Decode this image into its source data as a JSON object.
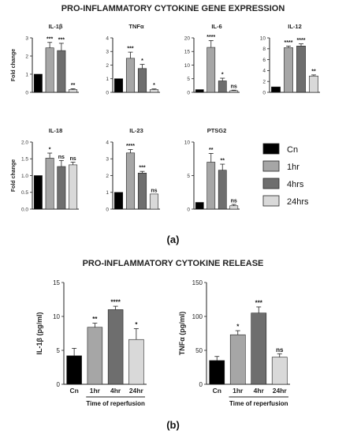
{
  "titles": {
    "gene_expression": "PRO-INFLAMMATORY CYTOKINE GENE EXPRESSION",
    "cytokine_release": "PRO-INFLAMMATORY CYTOKINE RELEASE"
  },
  "panel_labels": {
    "a": "(a)",
    "b": "(b)"
  },
  "legend": {
    "entries": [
      {
        "label": "Cn",
        "color": "#000000"
      },
      {
        "label": "1hr",
        "color": "#a6a6a6"
      },
      {
        "label": "4hrs",
        "color": "#6e6e6e"
      },
      {
        "label": "24hrs",
        "color": "#d9d9d9"
      }
    ]
  },
  "chart_data": [
    {
      "type": "bar",
      "title": "IL-1β",
      "ylabel": "Fold change",
      "categories": [
        "Cn",
        "1hr",
        "4hrs",
        "24hrs"
      ],
      "values": [
        1,
        2.45,
        2.3,
        0.15
      ],
      "errors": [
        0,
        0.3,
        0.4,
        0.05
      ],
      "significance": [
        "",
        "***",
        "***",
        "**"
      ],
      "yticks": [
        "0",
        "1",
        "2",
        "3"
      ],
      "ylim": [
        0,
        3
      ]
    },
    {
      "type": "bar",
      "title": "TNFα",
      "ylabel": "",
      "categories": [
        "Cn",
        "1hr",
        "4hrs",
        "24hrs"
      ],
      "values": [
        1,
        2.5,
        1.75,
        0.2
      ],
      "errors": [
        0,
        0.45,
        0.3,
        0.05
      ],
      "significance": [
        "",
        "***",
        "*",
        "*"
      ],
      "yticks": [
        "0",
        "1",
        "2",
        "3",
        "4"
      ],
      "ylim": [
        0,
        4
      ]
    },
    {
      "type": "bar",
      "title": "IL-6",
      "ylabel": "",
      "categories": [
        "Cn",
        "1hr",
        "4hrs",
        "24hrs"
      ],
      "values": [
        1,
        16.5,
        4.2,
        0.6
      ],
      "errors": [
        0,
        2.5,
        1.0,
        0.2
      ],
      "significance": [
        "",
        "****",
        "*",
        "ns"
      ],
      "yticks": [
        "0",
        "5",
        "10",
        "15",
        "20"
      ],
      "ylim": [
        0,
        20
      ]
    },
    {
      "type": "bar",
      "title": "IL-12",
      "ylabel": "",
      "categories": [
        "Cn",
        "1hr",
        "4hrs",
        "24hrs"
      ],
      "values": [
        1,
        8.2,
        8.5,
        3.0
      ],
      "errors": [
        0,
        0.3,
        0.4,
        0.2
      ],
      "significance": [
        "",
        "****",
        "****",
        "**"
      ],
      "yticks": [
        "0",
        "2",
        "4",
        "6",
        "8",
        "10"
      ],
      "ylim": [
        0,
        10
      ]
    },
    {
      "type": "bar",
      "title": "IL-18",
      "ylabel": "Fold change",
      "categories": [
        "Cn",
        "1hr",
        "4hrs",
        "24hrs"
      ],
      "values": [
        1,
        1.52,
        1.27,
        1.32
      ],
      "errors": [
        0,
        0.15,
        0.18,
        0.08
      ],
      "significance": [
        "",
        "*",
        "ns",
        "ns"
      ],
      "yticks": [
        "0.0",
        "0.5",
        "1.0",
        "1.5",
        "2.0"
      ],
      "ylim": [
        0,
        2
      ]
    },
    {
      "type": "bar",
      "title": "IL-23",
      "ylabel": "",
      "categories": [
        "Cn",
        "1hr",
        "4hrs",
        "24hrs"
      ],
      "values": [
        1,
        3.35,
        2.15,
        0.9
      ],
      "errors": [
        0,
        0.2,
        0.1,
        0
      ],
      "significance": [
        "",
        "****",
        "***",
        "ns"
      ],
      "yticks": [
        "0",
        "1",
        "2",
        "3",
        "4"
      ],
      "ylim": [
        0,
        4
      ]
    },
    {
      "type": "bar",
      "title": "PTSG2",
      "ylabel": "",
      "categories": [
        "Cn",
        "1hr",
        "4hrs",
        "24hrs"
      ],
      "values": [
        1,
        7,
        5.8,
        0.5
      ],
      "errors": [
        0,
        1.3,
        0.9,
        0.2
      ],
      "significance": [
        "",
        "**",
        "**",
        "ns"
      ],
      "yticks": [
        "0",
        "5",
        "10"
      ],
      "ylim": [
        0,
        10
      ]
    },
    {
      "type": "bar",
      "title": "",
      "ylabel": "IL-1β (pg/ml)",
      "xlabel": "Time of reperfusion",
      "categories": [
        "Cn",
        "1hr",
        "4hr",
        "24hr"
      ],
      "values": [
        4.2,
        8.4,
        11.0,
        6.6
      ],
      "errors": [
        1.1,
        0.6,
        0.5,
        1.6
      ],
      "significance": [
        "",
        "**",
        "****",
        "*"
      ],
      "yticks": [
        "0",
        "5",
        "10",
        "15"
      ],
      "ylim": [
        0,
        15
      ]
    },
    {
      "type": "bar",
      "title": "",
      "ylabel": "TNFα (pg/ml)",
      "xlabel": "Time of reperfusion",
      "categories": [
        "Cn",
        "1hr",
        "4hr",
        "24hr"
      ],
      "values": [
        35,
        73,
        105,
        40
      ],
      "errors": [
        6,
        6,
        9,
        5
      ],
      "significance": [
        "",
        "*",
        "***",
        "ns"
      ],
      "yticks": [
        "0",
        "50",
        "100",
        "150"
      ],
      "ylim": [
        0,
        150
      ]
    }
  ]
}
